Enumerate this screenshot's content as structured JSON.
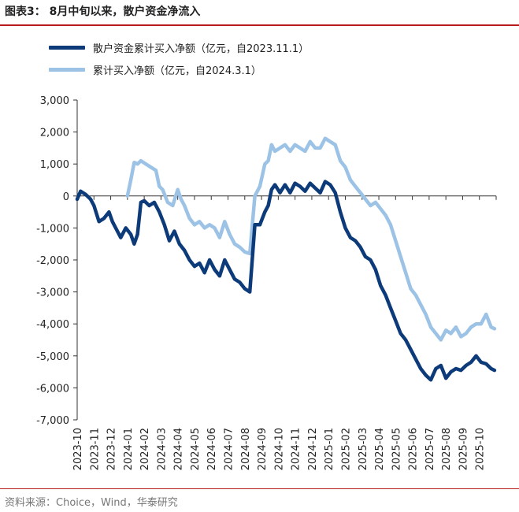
{
  "header": {
    "title": "图表3：  8月中旬以来，散户资金净流入"
  },
  "footer": {
    "source": "资料来源：Choice，Wind，华泰研究"
  },
  "colors": {
    "series1": "#0d3b7a",
    "series2": "#9cc3e6",
    "rule": "#b71c1c"
  },
  "chart_data": {
    "type": "line",
    "title": "8月中旬以来，散户资金净流入",
    "xlabel": "",
    "ylabel": "",
    "ylim": [
      -7000,
      3000
    ],
    "yticks": [
      3000,
      2000,
      1000,
      0,
      -1000,
      -2000,
      -3000,
      -4000,
      -5000,
      -6000,
      -7000
    ],
    "ytick_labels": [
      "3,000",
      "2,000",
      "1,000",
      "0",
      "-1,000",
      "-2,000",
      "-3,000",
      "-4,000",
      "-5,000",
      "-6,000",
      "-7,000"
    ],
    "xlim": [
      0,
      25
    ],
    "categories": [
      "2023-10",
      "2023-11",
      "2023-12",
      "2024-01",
      "2024-02",
      "2024-03",
      "2024-04",
      "2024-05",
      "2024-06",
      "2024-07",
      "2024-08",
      "2024-09",
      "2024-10",
      "2024-11",
      "2024-12",
      "2025-01",
      "2025-02",
      "2025-03",
      "2025-04",
      "2025-05",
      "2025-06",
      "2025-07",
      "2025-08",
      "2025-09",
      "2025-10"
    ],
    "legend_position": "top-left",
    "series": [
      {
        "name": "散户资金累计买入净额（亿元，自2023.11.1）",
        "x": [
          0,
          0.2,
          0.5,
          0.8,
          1.0,
          1.3,
          1.6,
          1.9,
          2.1,
          2.3,
          2.6,
          2.9,
          3.2,
          3.4,
          3.6,
          3.8,
          4.0,
          4.3,
          4.6,
          4.9,
          5.2,
          5.5,
          5.8,
          6.1,
          6.4,
          6.7,
          7.0,
          7.3,
          7.6,
          7.9,
          8.2,
          8.5,
          8.8,
          9.1,
          9.4,
          9.7,
          10.0,
          10.3,
          10.6,
          10.9,
          11.2,
          11.4,
          11.6,
          11.8,
          12.1,
          12.4,
          12.7,
          13.0,
          13.3,
          13.6,
          13.9,
          14.2,
          14.5,
          14.8,
          15.1,
          15.4,
          15.7,
          16.0,
          16.3,
          16.6,
          16.9,
          17.2,
          17.5,
          17.8,
          18.1,
          18.4,
          18.7,
          19.0,
          19.3,
          19.6,
          19.9,
          20.2,
          20.5,
          20.8,
          21.1,
          21.4,
          21.7,
          22.0,
          22.3,
          22.6,
          22.9,
          23.2,
          23.5,
          23.8,
          24.1,
          24.4,
          24.7,
          24.9
        ],
        "values": [
          -100,
          150,
          50,
          -100,
          -300,
          -800,
          -700,
          -500,
          -800,
          -1000,
          -1300,
          -1000,
          -1200,
          -1500,
          -1200,
          -200,
          -150,
          -300,
          -200,
          -500,
          -900,
          -1400,
          -1100,
          -1500,
          -1700,
          -2000,
          -2200,
          -2100,
          -2400,
          -2000,
          -2300,
          -2500,
          -2000,
          -2300,
          -2600,
          -2700,
          -2900,
          -3000,
          -900,
          -900,
          -500,
          -300,
          200,
          350,
          100,
          350,
          100,
          400,
          300,
          150,
          400,
          250,
          100,
          450,
          350,
          100,
          -500,
          -1000,
          -1300,
          -1400,
          -1600,
          -1900,
          -2000,
          -2300,
          -2800,
          -3100,
          -3500,
          -3900,
          -4300,
          -4500,
          -4800,
          -5100,
          -5400,
          -5600,
          -5750,
          -5400,
          -5300,
          -5700,
          -5500,
          -5400,
          -5450,
          -5300,
          -5200,
          -5000,
          -5200,
          -5250,
          -5400,
          -5450
        ]
      },
      {
        "name": "累计买入净额（亿元，自2024.3.1）",
        "x": [
          3.0,
          3.2,
          3.4,
          3.6,
          3.8,
          4.1,
          4.4,
          4.7,
          4.9,
          5.1,
          5.4,
          5.7,
          6.0,
          6.2,
          6.4,
          6.7,
          7.0,
          7.3,
          7.6,
          7.9,
          8.2,
          8.5,
          8.8,
          9.1,
          9.4,
          9.7,
          10.0,
          10.3,
          10.6,
          10.9,
          11.2,
          11.4,
          11.6,
          11.8,
          12.1,
          12.4,
          12.7,
          13.0,
          13.3,
          13.6,
          13.9,
          14.2,
          14.5,
          14.8,
          15.1,
          15.4,
          15.7,
          16.0,
          16.3,
          16.6,
          16.9,
          17.2,
          17.5,
          17.8,
          18.1,
          18.4,
          18.7,
          19.0,
          19.3,
          19.6,
          19.9,
          20.2,
          20.5,
          20.8,
          21.1,
          21.4,
          21.7,
          22.0,
          22.3,
          22.6,
          22.9,
          23.2,
          23.5,
          23.8,
          24.1,
          24.4,
          24.7,
          24.9
        ],
        "values": [
          0,
          500,
          1050,
          1000,
          1100,
          1000,
          900,
          800,
          300,
          200,
          -200,
          -300,
          200,
          -100,
          -300,
          -700,
          -900,
          -800,
          -1000,
          -900,
          -1000,
          -1300,
          -800,
          -1200,
          -1500,
          -1600,
          -1750,
          -1800,
          0,
          300,
          1000,
          1100,
          1600,
          1400,
          1500,
          1600,
          1400,
          1600,
          1500,
          1400,
          1700,
          1500,
          1500,
          1800,
          1700,
          1600,
          1100,
          900,
          500,
          300,
          100,
          -100,
          -300,
          -200,
          -400,
          -600,
          -900,
          -1400,
          -1900,
          -2400,
          -2900,
          -3100,
          -3400,
          -3700,
          -4100,
          -4300,
          -4500,
          -4200,
          -4300,
          -4100,
          -4400,
          -4300,
          -4100,
          -4000,
          -4000,
          -3700,
          -4100,
          -4150
        ]
      }
    ]
  }
}
